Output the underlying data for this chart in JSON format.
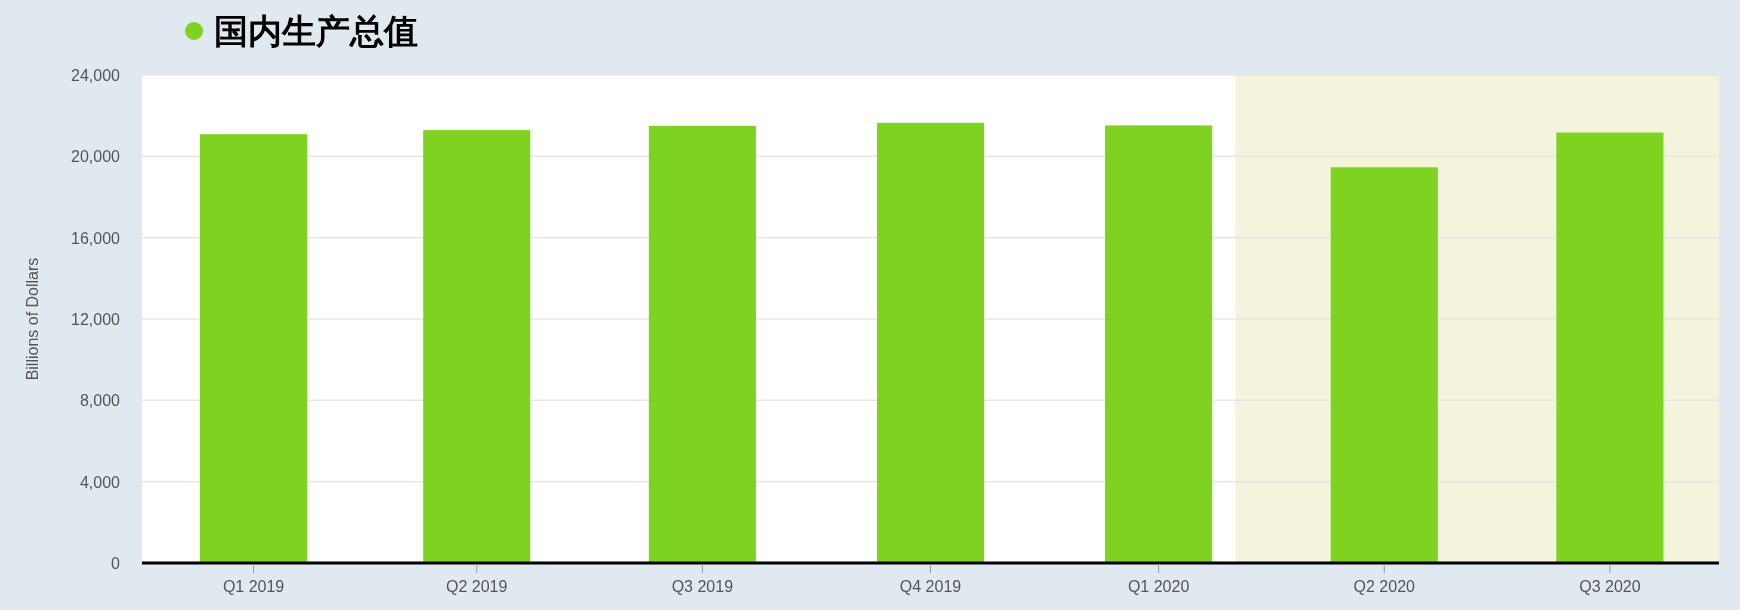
{
  "chart_data": {
    "type": "bar",
    "x": [
      "2019-01-01",
      "2019-04-01",
      "2019-07-01",
      "2019-10-01",
      "2020-01-01",
      "2020-04-01",
      "2020-07-01"
    ],
    "series": [
      {
        "name": "国内生产总值",
        "color": "#7ed321",
        "values": [
          21090,
          21290,
          21500,
          21650,
          21520,
          19460,
          21170
        ]
      }
    ],
    "xlim": [
      "2018-11-17",
      "2020-08-14"
    ],
    "xticks": [
      {
        "value": "2019-01-01",
        "label": "Q1 2019"
      },
      {
        "value": "2019-04-01",
        "label": "Q2 2019"
      },
      {
        "value": "2019-07-01",
        "label": "Q3 2019"
      },
      {
        "value": "2019-10-01",
        "label": "Q4 2019"
      },
      {
        "value": "2020-01-01",
        "label": "Q1 2020"
      },
      {
        "value": "2020-04-01",
        "label": "Q2 2020"
      },
      {
        "value": "2020-07-01",
        "label": "Q3 2020"
      }
    ],
    "ylim": [
      0,
      24000
    ],
    "yticks": [
      0,
      {
        "value": 4000,
        "label": "4,000"
      },
      {
        "value": 8000,
        "label": "8,000"
      },
      {
        "value": 12000,
        "label": "12,000"
      },
      {
        "value": 16000,
        "label": "16,000"
      },
      {
        "value": 20000,
        "label": "20,000"
      },
      {
        "value": 24000,
        "label": "24,000"
      }
    ],
    "ylabel": "Billions of Dollars",
    "grid": "y",
    "legend": "top left",
    "bands": [
      {
        "axis": "x",
        "from": "2020-02-01",
        "to": "2020-08-14",
        "color": "#f3f4db"
      }
    ]
  }
}
